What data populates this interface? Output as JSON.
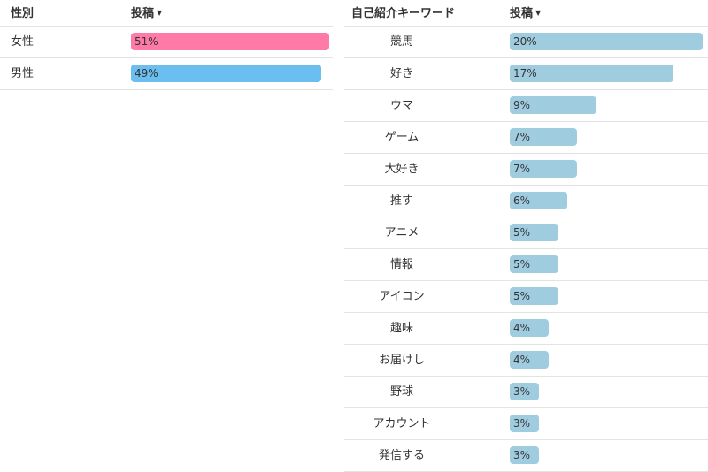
{
  "gender_table": {
    "col_label": "性別",
    "col_metric": "投稿"
  },
  "keyword_table": {
    "col_label": "自己紹介キーワード",
    "col_metric": "投稿"
  },
  "colors": {
    "female": "#ff7aa6",
    "male": "#6bbef0",
    "keyword": "#a0cce0",
    "divider": "#e3e3e3"
  },
  "chart_data": [
    {
      "type": "bar",
      "orientation": "horizontal",
      "categories": [
        "女性",
        "男性"
      ],
      "values": [
        51,
        49
      ],
      "value_labels": [
        "51%",
        "49%"
      ],
      "unit": "%",
      "xlim": [
        0,
        51
      ]
    },
    {
      "type": "bar",
      "orientation": "horizontal",
      "categories": [
        "競馬",
        "好き",
        "ウマ",
        "ゲーム",
        "大好き",
        "推す",
        "アニメ",
        "情報",
        "アイコン",
        "趣味",
        "お届けし",
        "野球",
        "アカウント",
        "発信する"
      ],
      "values": [
        20,
        17,
        9,
        7,
        7,
        6,
        5,
        5,
        5,
        4,
        4,
        3,
        3,
        3
      ],
      "value_labels": [
        "20%",
        "17%",
        "9%",
        "7%",
        "7%",
        "6%",
        "5%",
        "5%",
        "5%",
        "4%",
        "4%",
        "3%",
        "3%",
        "3%"
      ],
      "unit": "%",
      "xlim": [
        0,
        20
      ]
    }
  ]
}
